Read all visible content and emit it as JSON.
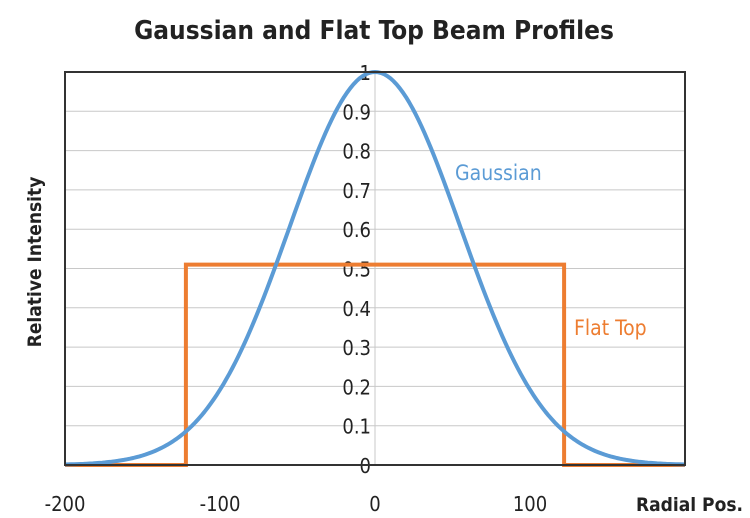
{
  "chart_data": {
    "type": "line",
    "title": "Gaussian and Flat Top Beam Profiles",
    "xlabel": "Radial Pos.",
    "ylabel": "Relative Intensity",
    "xlim": [
      -200,
      200
    ],
    "ylim": [
      0,
      1
    ],
    "x_ticks": [
      -200,
      -100,
      0,
      100
    ],
    "y_ticks": [
      0,
      0.1,
      0.2,
      0.3,
      0.4,
      0.5,
      0.6,
      0.7,
      0.8,
      0.9,
      1
    ],
    "grid": true,
    "series": [
      {
        "name": "Gaussian",
        "color": "#5b9bd5",
        "kind": "gaussian",
        "center": 0,
        "sigma": 55,
        "peak": 1
      },
      {
        "name": "Flat Top",
        "color": "#ed7d31",
        "x": [
          -200,
          -122,
          -122,
          122,
          122,
          200
        ],
        "y": [
          0,
          0,
          0.51,
          0.51,
          0,
          0
        ]
      }
    ]
  }
}
